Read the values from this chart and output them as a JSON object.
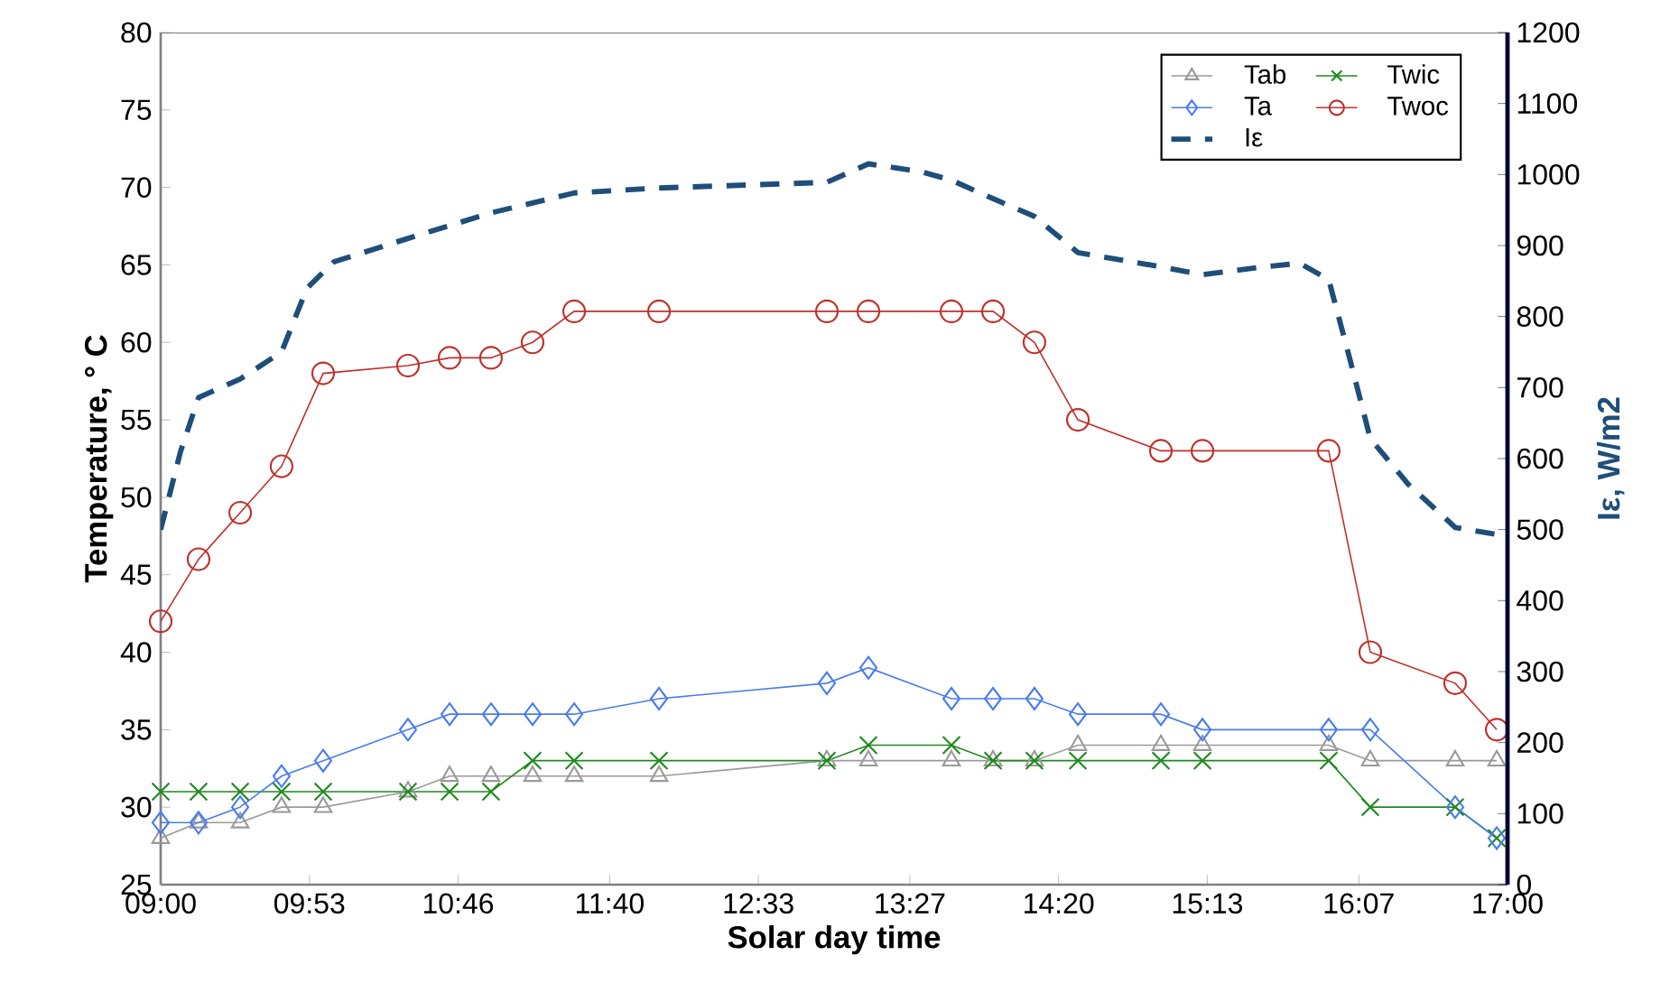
{
  "chart_data": {
    "type": "line",
    "xlabel": "Solar day time",
    "ylabel": "Temperature, ° C",
    "y2label": "Iε, W/m2",
    "x": [
      9.0,
      9.225,
      9.472,
      9.718,
      9.965,
      10.469,
      10.716,
      10.962,
      11.209,
      11.456,
      11.96,
      12.957,
      13.204,
      13.697,
      13.944,
      14.19,
      14.448,
      14.941,
      15.188,
      15.938,
      16.185,
      16.689,
      16.936
    ],
    "xlim": [
      9,
      17
    ],
    "xticks": [
      {
        "value": 9,
        "label": "09:00"
      },
      {
        "value": 9.8833,
        "label": "09:53"
      },
      {
        "value": 10.7667,
        "label": "10:46"
      },
      {
        "value": 11.6667,
        "label": "11:40"
      },
      {
        "value": 12.55,
        "label": "12:33"
      },
      {
        "value": 13.45,
        "label": "13:27"
      },
      {
        "value": 14.3333,
        "label": "14:20"
      },
      {
        "value": 15.2167,
        "label": "15:13"
      },
      {
        "value": 16.1167,
        "label": "16:07"
      },
      {
        "value": 17,
        "label": "17:00"
      }
    ],
    "ylim": [
      25,
      80
    ],
    "yticks": [
      25,
      30,
      35,
      40,
      45,
      50,
      55,
      60,
      65,
      70,
      75,
      80
    ],
    "y2lim": [
      0,
      1200
    ],
    "y2ticks": [
      0,
      100,
      200,
      300,
      400,
      500,
      600,
      700,
      800,
      900,
      1000,
      1100,
      1200
    ],
    "grid": false,
    "legend": "top right",
    "series": [
      {
        "name": "Tab",
        "color": "#9a9a9a",
        "marker": "triangle",
        "values": [
          28,
          29,
          29,
          30,
          30,
          31,
          32,
          32,
          32,
          32,
          32,
          33,
          33,
          33,
          33,
          33,
          34,
          34,
          34,
          34,
          33,
          33,
          33
        ]
      },
      {
        "name": "Twic",
        "color": "#1e8a1e",
        "marker": "cross",
        "values": [
          31,
          31,
          31,
          31,
          31,
          31,
          31,
          31,
          33,
          33,
          33,
          33,
          34,
          34,
          33,
          33,
          33,
          33,
          33,
          33,
          30,
          30,
          28
        ]
      },
      {
        "name": "Ta",
        "color": "#4a7cf0",
        "marker": "diamond",
        "values": [
          29,
          29,
          30,
          32,
          33,
          35,
          36,
          36,
          36,
          36,
          37,
          38,
          39,
          37,
          37,
          37,
          36,
          36,
          35,
          35,
          35,
          30,
          28
        ]
      },
      {
        "name": "Twoc",
        "color": "#c0302a",
        "marker": "circle",
        "values": [
          42,
          46,
          49,
          52,
          58,
          58.5,
          59,
          59,
          60,
          62,
          62,
          62,
          62,
          62,
          62,
          60,
          55,
          53,
          53,
          53,
          40,
          38,
          35
        ]
      },
      {
        "name": "Iε",
        "color": "#1f4e79",
        "marker": "none",
        "line_style": "dashed",
        "axis": "y2",
        "x": [
          9.0,
          9.118,
          9.225,
          9.472,
          9.718,
          9.869,
          10.029,
          10.469,
          10.962,
          11.456,
          11.96,
          12.957,
          13.204,
          13.515,
          13.697,
          13.944,
          14.19,
          14.448,
          14.941,
          15.188,
          15.552,
          15.767,
          15.938,
          16.067,
          16.185,
          16.41,
          16.689,
          16.936,
          17.0
        ],
        "values": [
          500,
          610,
          686,
          712,
          750,
          840,
          877,
          910,
          946,
          974,
          981,
          989,
          1015,
          1004,
          992,
          966,
          941,
          890,
          870,
          859,
          870,
          875,
          852,
          737,
          628,
          564,
          503,
          493,
          496
        ]
      }
    ]
  }
}
